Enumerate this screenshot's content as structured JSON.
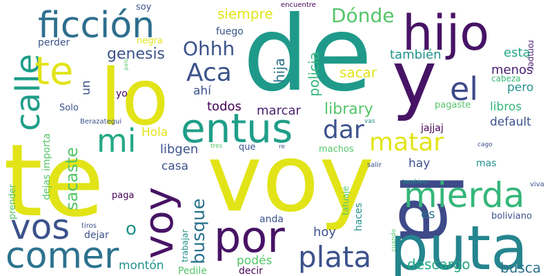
{
  "words": [
    {
      "text": "de",
      "color": "#1f9a8a"
    },
    {
      "text": "voy",
      "color": "#e2e418"
    },
    {
      "text": "te",
      "color": "#e2e418"
    },
    {
      "text": "la",
      "color": "#3e4a89"
    },
    {
      "text": "puta",
      "color": "#25858e"
    },
    {
      "text": "lo",
      "color": "#e2e418"
    },
    {
      "text": "y",
      "color": "#471365"
    },
    {
      "text": "hijo",
      "color": "#471365"
    },
    {
      "text": "por",
      "color": "#471365"
    },
    {
      "text": "entus",
      "color": "#1f9e89"
    },
    {
      "text": "ficción",
      "color": "#2e6e8e"
    },
    {
      "text": "calle",
      "color": "#1f9e89"
    },
    {
      "text": "te",
      "color": "#e2e418"
    },
    {
      "text": "mierda",
      "color": "#35b779"
    },
    {
      "text": "comer",
      "color": "#2c728e"
    },
    {
      "text": "vos",
      "color": "#3b528b"
    },
    {
      "text": "voy",
      "color": "#471365"
    },
    {
      "text": "el",
      "color": "#3e4a89"
    },
    {
      "text": "mi",
      "color": "#22a884"
    },
    {
      "text": "plata",
      "color": "#3b528b"
    },
    {
      "text": "matar",
      "color": "#e2e418"
    },
    {
      "text": "dar",
      "color": "#3b528b"
    },
    {
      "text": "Aca",
      "color": "#3b528b"
    },
    {
      "text": "busque",
      "color": "#2c728e"
    },
    {
      "text": "Ohhh",
      "color": "#3b528b"
    },
    {
      "text": "Dónde",
      "color": "#54c568"
    },
    {
      "text": "sacaste",
      "color": "#54c568"
    },
    {
      "text": "genesis",
      "color": "#3b528b"
    },
    {
      "text": "library",
      "color": "#54c568"
    },
    {
      "text": "descargo",
      "color": "#22a884"
    },
    {
      "text": "busca",
      "color": "#2c728e"
    },
    {
      "text": "siempre",
      "color": "#e2e418"
    },
    {
      "text": "policia",
      "color": "#35b779"
    },
    {
      "text": "hija",
      "color": "#2c728e"
    },
    {
      "text": "marcar",
      "color": "#481f70"
    },
    {
      "text": "también",
      "color": "#21918c"
    },
    {
      "text": "sacar",
      "color": "#e2e418"
    },
    {
      "text": "esta",
      "color": "#22a884"
    },
    {
      "text": "menos",
      "color": "#481f70"
    },
    {
      "text": "pero",
      "color": "#21918c"
    },
    {
      "text": "libros",
      "color": "#35b779"
    },
    {
      "text": "default",
      "color": "#3b528b"
    },
    {
      "text": "todos",
      "color": "#440154"
    },
    {
      "text": "ahí",
      "color": "#3b528b"
    },
    {
      "text": "libgen",
      "color": "#3b528b"
    },
    {
      "text": "casa",
      "color": "#3b528b"
    },
    {
      "text": "Hola",
      "color": "#e2e418"
    },
    {
      "text": "hay",
      "color": "#3b528b"
    },
    {
      "text": "jajjaj",
      "color": "#440154"
    },
    {
      "text": "mas",
      "color": "#21918c"
    },
    {
      "text": "hoy",
      "color": "#3b528b"
    },
    {
      "text": "es",
      "color": "#2c728e"
    },
    {
      "text": "montón",
      "color": "#21918c"
    },
    {
      "text": "podés",
      "color": "#54c568"
    },
    {
      "text": "decir",
      "color": "#440154"
    },
    {
      "text": "anda",
      "color": "#3b528b"
    },
    {
      "text": "dejar",
      "color": "#3b528b"
    },
    {
      "text": "un",
      "color": "#3b528b"
    },
    {
      "text": "o",
      "color": "#21918c"
    },
    {
      "text": "importa",
      "color": "#54c568"
    },
    {
      "text": "dejas",
      "color": "#54c568"
    },
    {
      "text": "prender",
      "color": "#54c568"
    },
    {
      "text": "Pedile",
      "color": "#54c568"
    },
    {
      "text": "trabajar",
      "color": "#21918c"
    },
    {
      "text": "tatuaje",
      "color": "#54c568"
    },
    {
      "text": "haces",
      "color": "#21918c"
    },
    {
      "text": "boliviano",
      "color": "#3b528b"
    },
    {
      "text": "cabeza",
      "color": "#35b779"
    },
    {
      "text": "pagaste",
      "color": "#54c568"
    },
    {
      "text": "romper",
      "color": "#481f70"
    },
    {
      "text": "fuego",
      "color": "#3b528b"
    },
    {
      "text": "perder",
      "color": "#3b528b"
    },
    {
      "text": "negra",
      "color": "#e2e418"
    },
    {
      "text": "soy",
      "color": "#3b528b"
    },
    {
      "text": "yo",
      "color": "#440154"
    },
    {
      "text": "Solo",
      "color": "#3b528b"
    },
    {
      "text": "paga",
      "color": "#440154"
    },
    {
      "text": "que",
      "color": "#3b528b"
    },
    {
      "text": "machos",
      "color": "#54c568"
    },
    {
      "text": "salir",
      "color": "#3b528b"
    },
    {
      "text": "Berazategui",
      "color": "#3b528b"
    },
    {
      "text": "encuentre",
      "color": "#440154"
    },
    {
      "text": "palo",
      "color": "#54c568"
    },
    {
      "text": "vas",
      "color": "#21918c"
    },
    {
      "text": "tres",
      "color": "#54c568"
    },
    {
      "text": "re",
      "color": "#3b528b"
    },
    {
      "text": "cago",
      "color": "#3b528b"
    },
    {
      "text": "viva",
      "color": "#3b528b"
    },
    {
      "text": "tambien",
      "color": "#21918c"
    },
    {
      "text": "tiros",
      "color": "#3b528b"
    },
    {
      "text": "cuando",
      "color": "#54c568"
    }
  ]
}
